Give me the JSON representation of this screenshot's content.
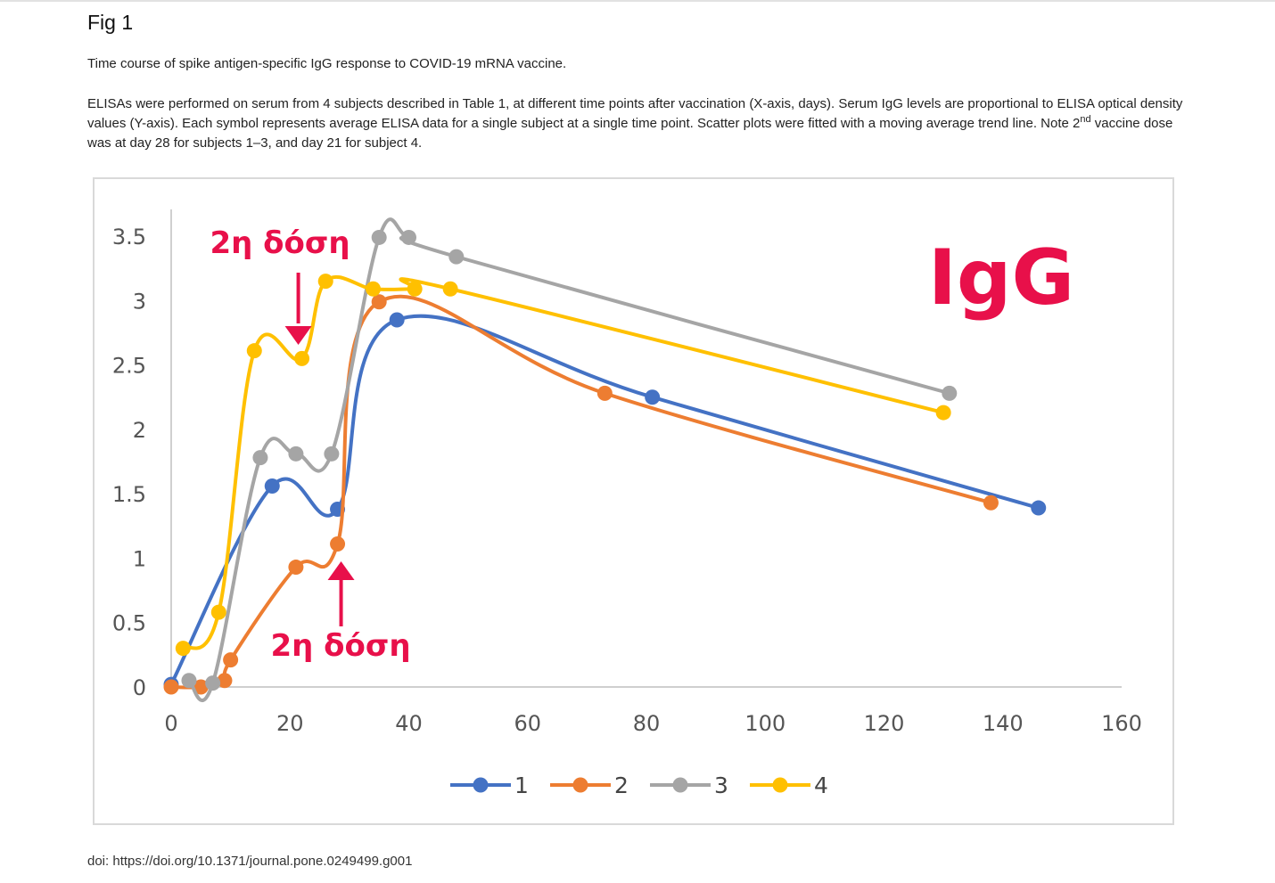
{
  "page": {
    "fig_title": "Fig 1",
    "caption_title": "Time course of spike antigen-specific IgG response to COVID-19 mRNA vaccine.",
    "caption_part1": "ELISAs were performed on serum from 4 subjects described in Table 1, at different time points after vaccination (X-axis, days). Serum IgG levels are proportional to ELISA optical density values (Y-axis). Each symbol represents average ELISA data for a single subject at a single time point. Scatter plots were fitted with a moving average trend line. Note 2",
    "caption_sup": "nd",
    "caption_part2": " vaccine dose was at day 28 for subjects 1–3, and day 21 for subject 4.",
    "doi": "doi: https://doi.org/10.1371/journal.pone.0249499.g001"
  },
  "chart_data": {
    "type": "line",
    "title": "",
    "xlabel": "",
    "ylabel": "",
    "xlim": [
      0,
      160
    ],
    "ylim": [
      0,
      3.5
    ],
    "x_ticks": [
      0,
      20,
      40,
      60,
      80,
      100,
      120,
      140,
      160
    ],
    "y_ticks": [
      0,
      0.5,
      1,
      1.5,
      2,
      2.5,
      3,
      3.5
    ],
    "y_tick_labels": [
      "0",
      "0.5",
      "1",
      "1.5",
      "2",
      "2.5",
      "3",
      "3.5"
    ],
    "grid": false,
    "legend_position": "bottom",
    "colors": [
      "#4472c4",
      "#ed7d31",
      "#a5a5a5",
      "#ffc000"
    ],
    "annotation_color": "#e8104a",
    "series": [
      {
        "name": "1",
        "x": [
          0,
          17,
          28,
          38,
          81,
          146
        ],
        "y": [
          0.02,
          1.56,
          1.38,
          2.85,
          2.25,
          1.39
        ]
      },
      {
        "name": "2",
        "x": [
          0,
          5,
          9,
          10,
          21,
          28,
          35,
          73,
          138
        ],
        "y": [
          0.0,
          0.0,
          0.05,
          0.21,
          0.93,
          1.11,
          2.99,
          2.28,
          1.43
        ]
      },
      {
        "name": "3",
        "x": [
          3,
          7,
          15,
          21,
          27,
          35,
          40,
          48,
          131
        ],
        "y": [
          0.05,
          0.03,
          1.78,
          1.81,
          1.81,
          3.49,
          3.49,
          3.34,
          2.28
        ]
      },
      {
        "name": "4",
        "x": [
          2,
          8,
          14,
          22,
          26,
          34,
          41,
          47,
          130
        ],
        "y": [
          0.3,
          0.58,
          2.61,
          2.55,
          3.15,
          3.09,
          3.09,
          3.09,
          2.13
        ]
      }
    ],
    "annotations": [
      {
        "text": "2η δόση",
        "x": 22,
        "y": 2.6,
        "arrow": "down"
      },
      {
        "text": "2η δόση",
        "x": 28,
        "y": 0.98,
        "arrow": "up"
      },
      {
        "text": "IgG"
      }
    ]
  }
}
